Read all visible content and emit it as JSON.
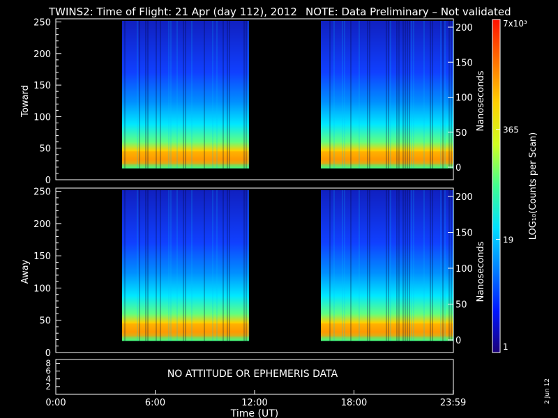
{
  "header": {
    "title": "TWINS2: Time of Flight: 21 Apr (day 112), 2012",
    "note": "NOTE: Data Preliminary – Not validated",
    "note_color": "#ff2020"
  },
  "chart_data": [
    {
      "type": "heatmap",
      "panel": "Toward",
      "ylabel": "Toward",
      "y2label": "Nanoseconds",
      "xlim": [
        "0:00",
        "23:59"
      ],
      "ylim": [
        0,
        255
      ],
      "y_ticks": [
        0,
        50,
        100,
        150,
        200,
        250
      ],
      "y2_ticks": [
        0,
        50,
        100,
        150,
        200
      ],
      "data_intervals_ut": [
        [
          "4:00",
          "11:40"
        ],
        [
          "16:00",
          "23:59"
        ]
      ],
      "peak_bin_range": [
        25,
        45
      ]
    },
    {
      "type": "heatmap",
      "panel": "Away",
      "ylabel": "Away",
      "y2label": "Nanoseconds",
      "xlim": [
        "0:00",
        "23:59"
      ],
      "ylim": [
        0,
        255
      ],
      "y_ticks": [
        0,
        50,
        100,
        150,
        200,
        250
      ],
      "y2_ticks": [
        0,
        50,
        100,
        150,
        200
      ],
      "data_intervals_ut": [
        [
          "4:00",
          "11:40"
        ],
        [
          "16:00",
          "23:59"
        ]
      ],
      "peak_bin_range": [
        25,
        45
      ]
    }
  ],
  "attitude_panel": {
    "message": "NO ATTITUDE OR EPHEMERIS DATA",
    "y_ticks": [
      "2",
      "4",
      "6",
      "8"
    ]
  },
  "x_axis": {
    "label": "Time (UT)",
    "ticks": [
      "0:00",
      "6:00",
      "12:00",
      "18:00",
      "23:59"
    ]
  },
  "colorbar": {
    "label": "LOG₁₀(Counts per Scan)",
    "ticks": [
      "1",
      "19",
      "365",
      "7x10³"
    ],
    "colors": [
      "#1a0078",
      "#0015ff",
      "#0080ff",
      "#00e0ff",
      "#40ff90",
      "#d0ff20",
      "#ffd000",
      "#ff7000",
      "#ff1000"
    ]
  },
  "footer": {
    "date": "2 Jun 12"
  }
}
